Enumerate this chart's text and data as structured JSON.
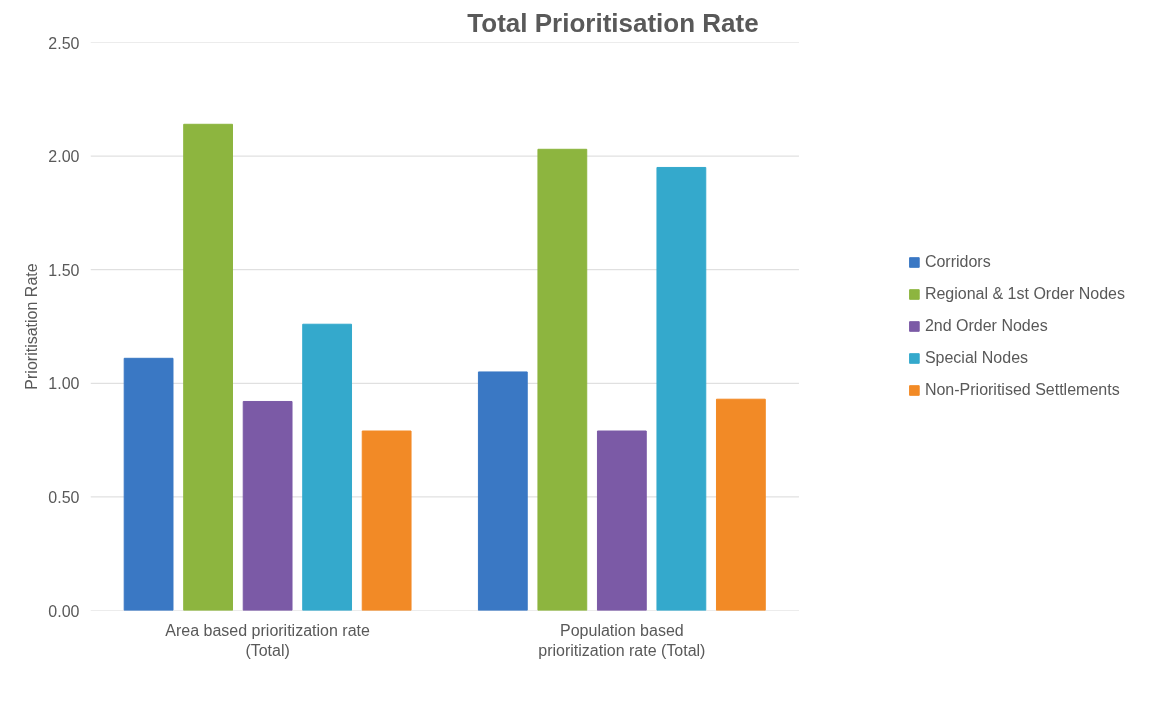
{
  "chart_data": {
    "type": "bar",
    "title": "Total Prioritisation Rate",
    "ylabel": "Prioritisation Rate",
    "categories": [
      "Area based prioritization rate (Total)",
      "Population based prioritization rate (Total)"
    ],
    "series": [
      {
        "name": "Corridors",
        "color": "#3a78c4",
        "values": [
          1.11,
          1.05
        ]
      },
      {
        "name": "Regional & 1st Order Nodes",
        "color": "#8db53f",
        "values": [
          2.14,
          2.03
        ]
      },
      {
        "name": "2nd Order Nodes",
        "color": "#7b5aa6",
        "values": [
          0.92,
          0.79
        ]
      },
      {
        "name": "Special Nodes",
        "color": "#34a9cc",
        "values": [
          1.26,
          1.95
        ]
      },
      {
        "name": "Non-Prioritised Settlements",
        "color": "#f28a26",
        "values": [
          0.79,
          0.93
        ]
      }
    ],
    "ylim": [
      0,
      2.5
    ],
    "yticks": [
      {
        "value": 0,
        "label": "0.00"
      },
      {
        "value": 0.5,
        "label": "0.50"
      },
      {
        "value": 1,
        "label": "1.00"
      },
      {
        "value": 1.5,
        "label": "1.50"
      },
      {
        "value": 2,
        "label": "2.00"
      },
      {
        "value": 2.5,
        "label": "2.50"
      }
    ],
    "grid": "y",
    "legend": "right"
  }
}
